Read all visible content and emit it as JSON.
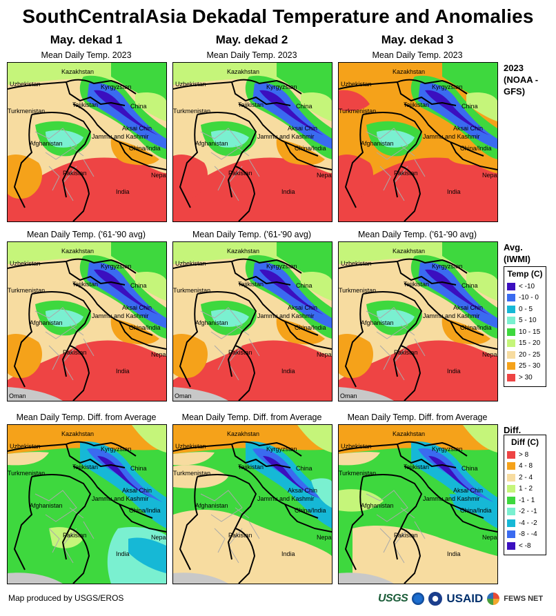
{
  "title": "SouthCentralAsia Dekadal Temperature and Anomalies",
  "columns": [
    {
      "heading": "May. dekad 1",
      "sub_current": "Mean Daily Temp. 2023",
      "sub_avg": "Mean Daily Temp. ('61-'90 avg)",
      "sub_diff": "Mean Daily Temp. Diff. from Average"
    },
    {
      "heading": "May. dekad 2",
      "sub_current": "Mean Daily Temp. 2023",
      "sub_avg": "Mean Daily Temp. ('61-'90 avg)",
      "sub_diff": "Mean Daily Temp. Diff. from Average"
    },
    {
      "heading": "May. dekad 3",
      "sub_current": "Mean Daily Temp. 2023",
      "sub_avg": "Mean Daily Temp. ('61-'90 avg)",
      "sub_diff": "Mean Daily Temp. Diff. from Average"
    }
  ],
  "row_labels": {
    "current": "2023 (NOAA -GFS)",
    "avg": "Avg. (IWMI)",
    "diff": "Diff."
  },
  "map_labels": {
    "kazakhstan": "Kazakhstan",
    "uzbekistan": "Uzbekistan",
    "kyrgyzstan": "Kyrgyzstan",
    "tajikistan": "Tajikistan",
    "china": "China",
    "turkmenistan": "Turkmenistan",
    "aksai_chin": "Aksai Chin",
    "jammu_kashmir": "Jammu and Kashmir",
    "afghanistan": "Afghanistan",
    "china_india": "China/India",
    "pakistan": "Pakistan",
    "nepal": "Nepal",
    "india": "India",
    "oman": "Oman"
  },
  "temp_legend": {
    "heading": "Temp (C)",
    "items": [
      {
        "label": "< -10",
        "color": "#3b0fbf"
      },
      {
        "label": "-10 - 0",
        "color": "#3a6bf0"
      },
      {
        "label": "0 - 5",
        "color": "#16b8d6"
      },
      {
        "label": "5 - 10",
        "color": "#7af0d0"
      },
      {
        "label": "10 - 15",
        "color": "#3ed83e"
      },
      {
        "label": "15 - 20",
        "color": "#c5f57a"
      },
      {
        "label": "20 - 25",
        "color": "#f7dca0"
      },
      {
        "label": "25 - 30",
        "color": "#f5a21a"
      },
      {
        "label": "> 30",
        "color": "#ee4444"
      }
    ]
  },
  "diff_legend": {
    "heading": "Diff (C)",
    "items": [
      {
        "label": "> 8",
        "color": "#ee4444"
      },
      {
        "label": "4 - 8",
        "color": "#f5a21a"
      },
      {
        "label": "2 - 4",
        "color": "#f7dca0"
      },
      {
        "label": "1 - 2",
        "color": "#c5f57a"
      },
      {
        "label": "-1 - 1",
        "color": "#3ed83e"
      },
      {
        "label": "-2 - -1",
        "color": "#7af0d0"
      },
      {
        "label": "-4 - -2",
        "color": "#16b8d6"
      },
      {
        "label": "-8 - -4",
        "color": "#3a6bf0"
      },
      {
        "label": "< -8",
        "color": "#3b0fbf"
      }
    ]
  },
  "footer": {
    "credit": "Map produced by USGS/EROS",
    "logo_usgs": "USGS",
    "logo_usaid": "USAID",
    "logo_fews": "FEWS NET"
  }
}
